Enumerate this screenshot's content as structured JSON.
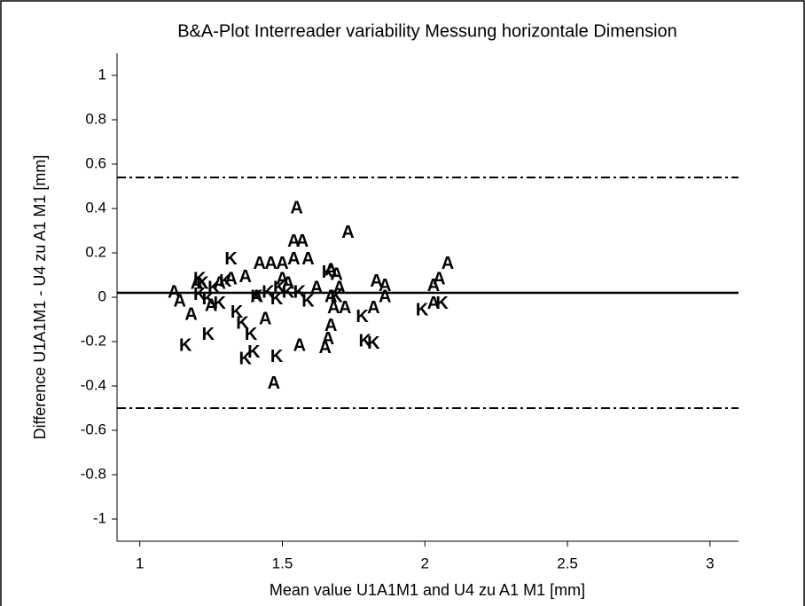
{
  "chart_data": {
    "type": "scatter",
    "title": "B&A-Plot Interreader variability Messung horizontale Dimension",
    "xlabel": "Mean value U1A1M1 and U4 zu A1 M1 [mm]",
    "ylabel": "Difference U1A1M1 - U4 zu A1 M1 [mm]",
    "xlim": [
      0.92,
      3.1
    ],
    "xticks": [
      1,
      1.5,
      2,
      2.5,
      3
    ],
    "ylim": [
      -1.1,
      1.1
    ],
    "yticks": [
      -1,
      -0.8,
      -0.6,
      -0.4,
      -0.2,
      0,
      0.2,
      0.4,
      0.6,
      0.8,
      1
    ],
    "reference_lines": [
      {
        "value": 0.54,
        "style": "dashdot"
      },
      {
        "value": 0.02,
        "style": "solid"
      },
      {
        "value": -0.5,
        "style": "dashdot"
      }
    ],
    "series": [
      {
        "name": "A",
        "color": "#000000",
        "x": [
          1.12,
          1.14,
          1.18,
          1.2,
          1.25,
          1.28,
          1.32,
          1.37,
          1.41,
          1.44,
          1.42,
          1.46,
          1.5,
          1.5,
          1.47,
          1.55,
          1.54,
          1.57,
          1.54,
          1.59,
          1.56,
          1.73,
          1.67,
          1.69,
          1.7,
          1.67,
          1.68,
          1.72,
          1.67,
          1.66,
          1.65,
          1.83,
          1.86,
          1.86,
          1.82,
          2.08,
          2.05,
          2.03,
          2.03,
          1.52,
          1.62
        ],
        "values": [
          0.02,
          -0.02,
          -0.08,
          0.06,
          -0.04,
          0.06,
          0.08,
          0.09,
          0.0,
          -0.1,
          0.15,
          0.15,
          0.15,
          0.08,
          -0.39,
          0.4,
          0.25,
          0.25,
          0.17,
          0.17,
          -0.22,
          0.29,
          0.12,
          0.1,
          0.04,
          0.0,
          -0.05,
          -0.05,
          -0.13,
          -0.19,
          -0.23,
          0.07,
          0.05,
          0.0,
          -0.05,
          0.15,
          0.08,
          0.05,
          -0.03,
          0.06,
          0.04
        ]
      },
      {
        "name": "K",
        "color": "#000000",
        "x": [
          1.16,
          1.21,
          1.21,
          1.22,
          1.24,
          1.24,
          1.26,
          1.28,
          1.3,
          1.32,
          1.34,
          1.36,
          1.39,
          1.4,
          1.37,
          1.41,
          1.45,
          1.48,
          1.48,
          1.52,
          1.56,
          1.59,
          1.66,
          1.69,
          1.78,
          1.79,
          1.82,
          1.99,
          2.06,
          1.49
        ],
        "values": [
          -0.22,
          0.08,
          0.01,
          0.06,
          -0.01,
          -0.17,
          0.04,
          -0.03,
          0.07,
          0.17,
          -0.07,
          -0.12,
          -0.17,
          -0.25,
          -0.28,
          0.0,
          0.02,
          -0.01,
          -0.27,
          0.02,
          0.02,
          -0.02,
          0.11,
          0.0,
          -0.09,
          -0.2,
          -0.21,
          -0.06,
          -0.03,
          0.04
        ]
      }
    ]
  }
}
